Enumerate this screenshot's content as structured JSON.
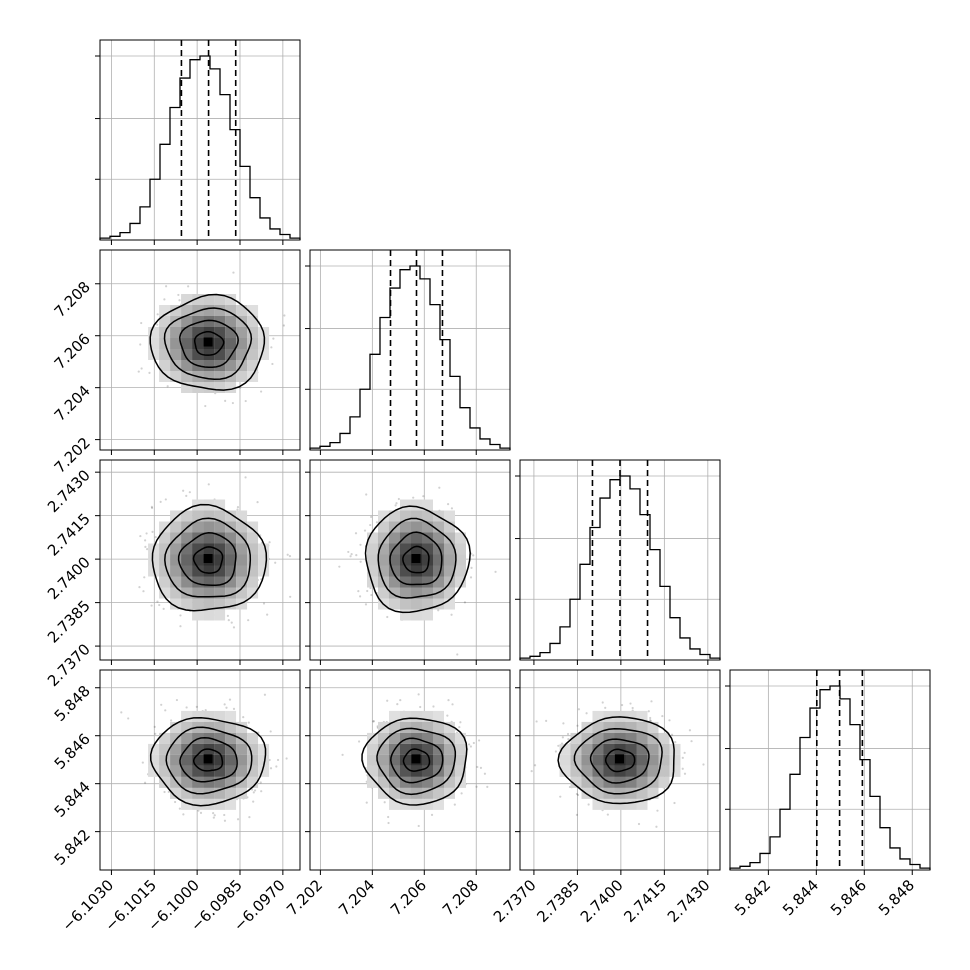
{
  "chart_data": {
    "type": "corner",
    "parameters": [
      {
        "center": -6.0996,
        "sigma": 0.00095,
        "range": [
          -6.1034,
          -6.0964
        ],
        "ticks": [
          -6.103,
          -6.1015,
          -6.1,
          -6.0985,
          -6.097
        ],
        "tick_labels": [
          "−6.1030",
          "−6.1015",
          "−6.1000",
          "−6.0985",
          "−6.0970"
        ],
        "quantiles": [
          -6.10055,
          -6.0996,
          -6.09865
        ]
      },
      {
        "center": 7.2057,
        "sigma": 0.00095,
        "range": [
          7.2016,
          7.2093
        ],
        "ticks": [
          7.202,
          7.204,
          7.206,
          7.208
        ],
        "tick_labels": [
          "7.202",
          "7.204",
          "7.206",
          "7.208"
        ],
        "quantiles": [
          7.2047,
          7.2057,
          7.2067
        ]
      },
      {
        "center": 2.73997,
        "sigma": 0.00095,
        "range": [
          2.73652,
          2.74342
        ],
        "ticks": [
          2.737,
          2.7385,
          2.74,
          2.7415,
          2.743
        ],
        "tick_labels": [
          "2.7370",
          "2.7385",
          "2.7400",
          "2.7415",
          "2.7430"
        ],
        "quantiles": [
          2.73902,
          2.73997,
          2.74092
        ]
      },
      {
        "center": 5.84497,
        "sigma": 0.00095,
        "range": [
          5.8404,
          5.84874
        ],
        "ticks": [
          5.842,
          5.844,
          5.846,
          5.848
        ],
        "tick_labels": [
          "5.842",
          "5.844",
          "5.846",
          "5.848"
        ],
        "quantiles": [
          5.84402,
          5.84497,
          5.84592
        ]
      }
    ],
    "histogram": {
      "bins": 20,
      "relative_counts": [
        0.01,
        0.02,
        0.04,
        0.09,
        0.18,
        0.33,
        0.52,
        0.72,
        0.88,
        0.98,
        1.0,
        0.93,
        0.79,
        0.6,
        0.4,
        0.23,
        0.12,
        0.06,
        0.03,
        0.01
      ]
    },
    "density": {
      "contour_levels_sigma": [
        0.5,
        1.0,
        1.5,
        2.0
      ],
      "grid_on": true
    }
  }
}
